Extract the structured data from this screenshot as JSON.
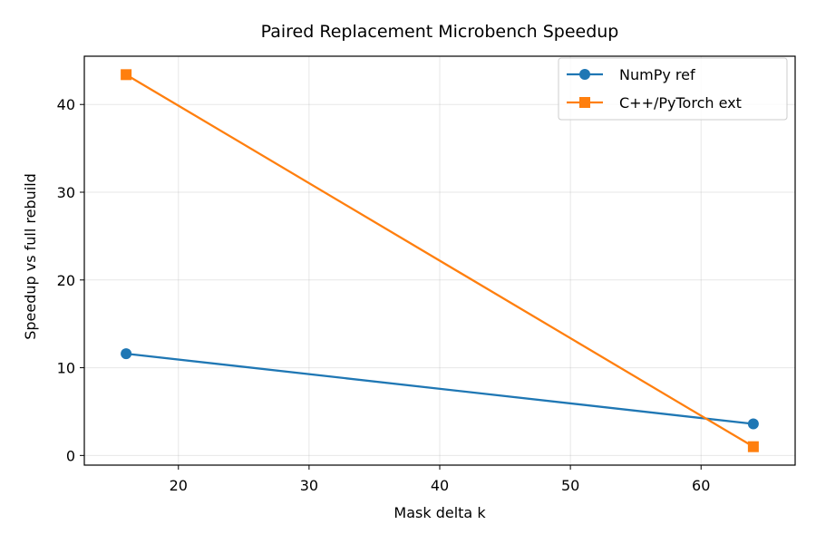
{
  "chart_data": {
    "type": "line",
    "title": "Paired Replacement Microbench Speedup",
    "xlabel": "Mask delta k",
    "ylabel": "Speedup vs full rebuild",
    "x": [
      16,
      64
    ],
    "xlim": [
      12.8,
      67.2
    ],
    "ylim": [
      -1.1,
      45.5
    ],
    "xticks": [
      20,
      30,
      40,
      50,
      60
    ],
    "yticks": [
      0,
      10,
      20,
      30,
      40
    ],
    "grid": true,
    "legend_position": "top-right",
    "series": [
      {
        "name": "NumPy ref",
        "values": [
          11.6,
          3.6
        ],
        "color": "#1f77b4",
        "marker": "circle"
      },
      {
        "name": "C++/PyTorch ext",
        "values": [
          43.4,
          1.0
        ],
        "color": "#ff7f0e",
        "marker": "square"
      }
    ]
  }
}
